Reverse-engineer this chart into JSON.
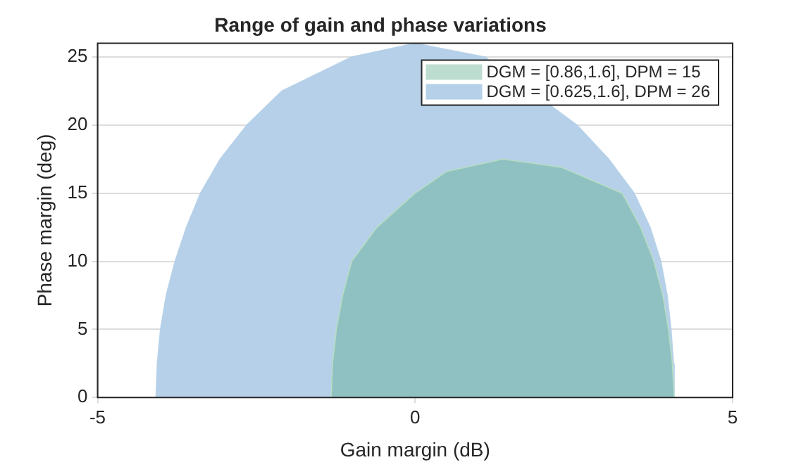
{
  "chart_data": {
    "type": "area",
    "title": "Range of gain and phase variations",
    "xlabel": "Gain margin (dB)",
    "ylabel": "Phase margin (deg)",
    "xlim": [
      -5,
      5
    ],
    "xticks": [
      -5,
      0,
      5
    ],
    "ylim": [
      0,
      26
    ],
    "yticks": [
      0,
      5,
      10,
      15,
      20,
      25
    ],
    "grid": true,
    "legend": "top right",
    "series": [
      {
        "name": "DGM = [0.86,1.6], DPM = 15",
        "color": "#b9dfc0",
        "x": [
          -1.32,
          -1.3,
          -1.24,
          -1.14,
          -1.0,
          -0.6,
          0,
          0.5,
          1.38,
          2.3,
          3.26,
          3.55,
          3.76,
          3.9,
          3.99,
          4.05,
          4.08
        ],
        "values": [
          0,
          2.5,
          5,
          7.5,
          10,
          12.5,
          15,
          16.6,
          17.5,
          16.9,
          15,
          12.5,
          10,
          7.5,
          5,
          2.5,
          0
        ]
      },
      {
        "name": "DGM = [0.625,1.6], DPM = 26",
        "color": "#b5d0e8",
        "x": [
          -4.08,
          -4.06,
          -4.01,
          -3.92,
          -3.78,
          -3.6,
          -3.38,
          -3.07,
          -2.65,
          -2.1,
          -1.0,
          0,
          1.1,
          2.05,
          2.55,
          3.05,
          3.45,
          3.7,
          3.87,
          3.97,
          4.03,
          4.07,
          4.08
        ],
        "values": [
          0,
          2.5,
          5,
          7.5,
          10,
          12.5,
          15,
          17.5,
          20,
          22.5,
          25,
          26,
          25,
          null,
          20,
          17.5,
          15,
          12.5,
          10,
          7.5,
          5,
          2.5,
          0
        ]
      }
    ]
  }
}
